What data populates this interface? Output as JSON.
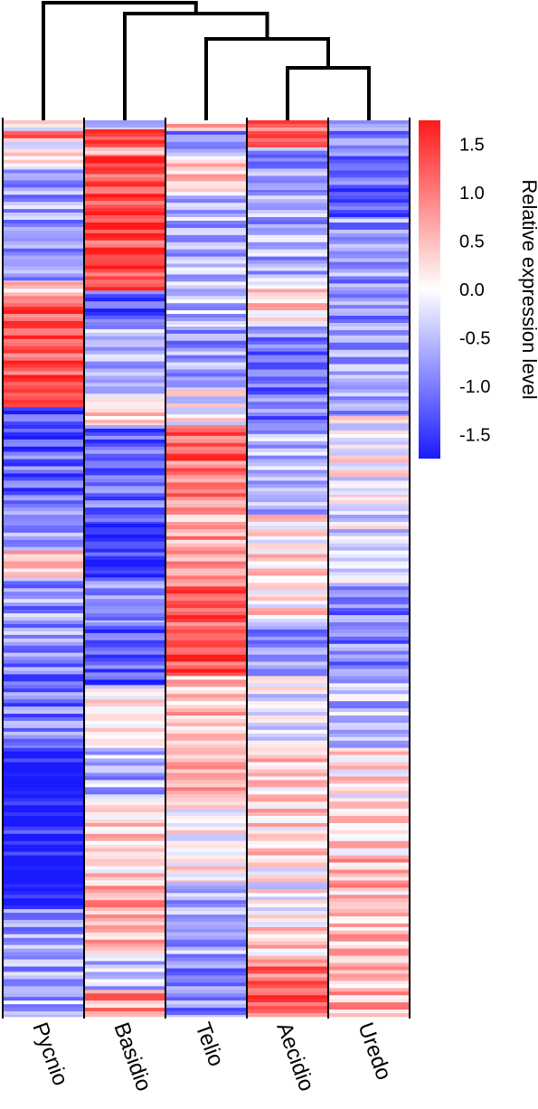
{
  "chart_data": {
    "type": "heatmap",
    "title": "",
    "columns": [
      "Pycnio",
      "Basidio",
      "Telio",
      "Aecidio",
      "Uredo"
    ],
    "row_count": 1000,
    "colorbar": {
      "label": "Relative expression level",
      "min": -1.75,
      "max": 1.75,
      "ticks": [
        1.5,
        1.0,
        0.5,
        0.0,
        -0.5,
        -1.0,
        -1.5
      ],
      "tick_labels": [
        "1.5",
        "1.0",
        "0.5",
        "0.0",
        "-0.5",
        "-1.0",
        "-1.5"
      ],
      "low_color": "#1a1aff",
      "mid_color": "#ffffff",
      "high_color": "#ff1a1a"
    },
    "dendrogram": {
      "column_order": [
        "Pycnio",
        "Basidio",
        "Telio",
        "Aecidio",
        "Uredo"
      ],
      "merges": [
        [
          "Aecidio",
          "Uredo"
        ],
        [
          "Telio",
          "Aecidio+Uredo"
        ],
        [
          "Basidio",
          "Telio+Aecidio+Uredo"
        ],
        [
          "Pycnio",
          "Basidio+Telio+Aecidio+Uredo"
        ]
      ]
    },
    "row_blocks": {
      "Pycnio": [
        {
          "rows": [
            0,
            12
          ],
          "value": 0.2
        },
        {
          "rows": [
            12,
            20
          ],
          "value": 1.5
        },
        {
          "rows": [
            20,
            55
          ],
          "value": 0.3
        },
        {
          "rows": [
            55,
            180
          ],
          "value": -0.4
        },
        {
          "rows": [
            180,
            200
          ],
          "value": 0.8
        },
        {
          "rows": [
            200,
            320
          ],
          "value": 1.65
        },
        {
          "rows": [
            320,
            370
          ],
          "value": -1.1
        },
        {
          "rows": [
            370,
            420
          ],
          "value": -0.9
        },
        {
          "rows": [
            420,
            480
          ],
          "value": -0.6
        },
        {
          "rows": [
            480,
            510
          ],
          "value": 0.7
        },
        {
          "rows": [
            510,
            590
          ],
          "value": -0.5
        },
        {
          "rows": [
            590,
            700
          ],
          "value": -0.7
        },
        {
          "rows": [
            700,
            780
          ],
          "value": -1.6
        },
        {
          "rows": [
            780,
            820
          ],
          "value": -1.4
        },
        {
          "rows": [
            820,
            880
          ],
          "value": -1.7
        },
        {
          "rows": [
            880,
            950
          ],
          "value": -0.5
        },
        {
          "rows": [
            950,
            1000
          ],
          "value": -0.3
        }
      ],
      "Basidio": [
        {
          "rows": [
            0,
            10
          ],
          "value": -0.3
        },
        {
          "rows": [
            10,
            30
          ],
          "value": 1.6
        },
        {
          "rows": [
            30,
            40
          ],
          "value": 1.1
        },
        {
          "rows": [
            40,
            70
          ],
          "value": 1.6
        },
        {
          "rows": [
            70,
            190
          ],
          "value": 1.7
        },
        {
          "rows": [
            190,
            225
          ],
          "value": -1.0
        },
        {
          "rows": [
            225,
            310
          ],
          "value": -0.3
        },
        {
          "rows": [
            310,
            340
          ],
          "value": 0.5
        },
        {
          "rows": [
            340,
            450
          ],
          "value": -0.9
        },
        {
          "rows": [
            450,
            510
          ],
          "value": -1.3
        },
        {
          "rows": [
            510,
            560
          ],
          "value": -0.6
        },
        {
          "rows": [
            560,
            630
          ],
          "value": -0.9
        },
        {
          "rows": [
            630,
            700
          ],
          "value": 0.4
        },
        {
          "rows": [
            700,
            760
          ],
          "value": -0.3
        },
        {
          "rows": [
            760,
            850
          ],
          "value": 0.6
        },
        {
          "rows": [
            850,
            930
          ],
          "value": 0.9
        },
        {
          "rows": [
            930,
            970
          ],
          "value": -0.2
        },
        {
          "rows": [
            970,
            1000
          ],
          "value": 1.1
        }
      ],
      "Telio": [
        {
          "rows": [
            0,
            12
          ],
          "value": 0.9
        },
        {
          "rows": [
            12,
            40
          ],
          "value": -0.6
        },
        {
          "rows": [
            40,
            80
          ],
          "value": 0.6
        },
        {
          "rows": [
            80,
            230
          ],
          "value": -0.3
        },
        {
          "rows": [
            230,
            300
          ],
          "value": -0.5
        },
        {
          "rows": [
            300,
            340
          ],
          "value": 0.2
        },
        {
          "rows": [
            340,
            420
          ],
          "value": 1.4
        },
        {
          "rows": [
            420,
            520
          ],
          "value": 1.0
        },
        {
          "rows": [
            520,
            620
          ],
          "value": 1.6
        },
        {
          "rows": [
            620,
            760
          ],
          "value": 0.8
        },
        {
          "rows": [
            760,
            850
          ],
          "value": 0.4
        },
        {
          "rows": [
            850,
            930
          ],
          "value": -0.4
        },
        {
          "rows": [
            930,
            1000
          ],
          "value": -0.6
        }
      ],
      "Aecidio": [
        {
          "rows": [
            0,
            30
          ],
          "value": 1.6
        },
        {
          "rows": [
            30,
            80
          ],
          "value": -0.6
        },
        {
          "rows": [
            80,
            180
          ],
          "value": -0.3
        },
        {
          "rows": [
            180,
            230
          ],
          "value": 0.6
        },
        {
          "rows": [
            230,
            350
          ],
          "value": -0.7
        },
        {
          "rows": [
            350,
            440
          ],
          "value": -0.3
        },
        {
          "rows": [
            440,
            560
          ],
          "value": 0.5
        },
        {
          "rows": [
            560,
            620
          ],
          "value": -0.5
        },
        {
          "rows": [
            620,
            700
          ],
          "value": 0.2
        },
        {
          "rows": [
            700,
            830
          ],
          "value": 0.6
        },
        {
          "rows": [
            830,
            900
          ],
          "value": 0.3
        },
        {
          "rows": [
            900,
            940
          ],
          "value": 0.7
        },
        {
          "rows": [
            940,
            1000
          ],
          "value": 1.4
        }
      ],
      "Uredo": [
        {
          "rows": [
            0,
            40
          ],
          "value": -0.5
        },
        {
          "rows": [
            40,
            110
          ],
          "value": -0.9
        },
        {
          "rows": [
            110,
            240
          ],
          "value": -0.5
        },
        {
          "rows": [
            240,
            330
          ],
          "value": -0.4
        },
        {
          "rows": [
            330,
            420
          ],
          "value": 0.3
        },
        {
          "rows": [
            420,
            520
          ],
          "value": 0.1
        },
        {
          "rows": [
            520,
            620
          ],
          "value": -0.6
        },
        {
          "rows": [
            620,
            700
          ],
          "value": -0.2
        },
        {
          "rows": [
            700,
            820
          ],
          "value": 0.5
        },
        {
          "rows": [
            820,
            900
          ],
          "value": 0.8
        },
        {
          "rows": [
            900,
            940
          ],
          "value": 0.9
        },
        {
          "rows": [
            940,
            1000
          ],
          "value": 0.9
        }
      ]
    }
  }
}
